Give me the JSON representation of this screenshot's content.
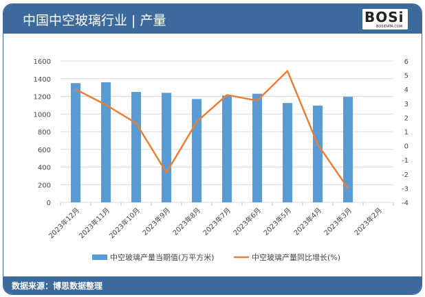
{
  "header": {
    "title": "中国中空玻璃行业 | 产量",
    "logo_text": "BOSi",
    "logo_sub": "BOSIDATA.COM"
  },
  "footer": {
    "source": "数据来源：博思数据整理"
  },
  "colors": {
    "bar": "#5b9bd5",
    "line": "#ed7d31",
    "header": "#3d6a9c"
  },
  "chart_data": {
    "type": "bar+line",
    "categories": [
      "2023年12月",
      "2023年11月",
      "2023年10月",
      "2023年9月",
      "2023年8月",
      "2023年7月",
      "2023年6月",
      "2023年5月",
      "2023年4月",
      "2023年3月",
      "2023年2月"
    ],
    "series": [
      {
        "name": "中空玻璃产量当期值(万平方米)",
        "type": "bar",
        "axis": "left",
        "values": [
          1350,
          1360,
          1250,
          1240,
          1170,
          1210,
          1230,
          1125,
          1095,
          1195,
          null
        ]
      },
      {
        "name": "中空玻璃产量同比增长(%)",
        "type": "line",
        "axis": "right",
        "values": [
          4.0,
          2.9,
          1.6,
          -1.9,
          1.7,
          3.6,
          3.2,
          5.3,
          0.1,
          -3.0,
          null
        ]
      }
    ],
    "ylim_left": [
      0,
      1600
    ],
    "yticks_left": [
      0,
      200,
      400,
      600,
      800,
      1000,
      1200,
      1400,
      1600
    ],
    "ylim_right": [
      -4,
      6
    ],
    "yticks_right": [
      -4,
      -3,
      -2,
      -1,
      0,
      1,
      2,
      3,
      4,
      5,
      6
    ],
    "grid": true,
    "legend": "bottom"
  }
}
